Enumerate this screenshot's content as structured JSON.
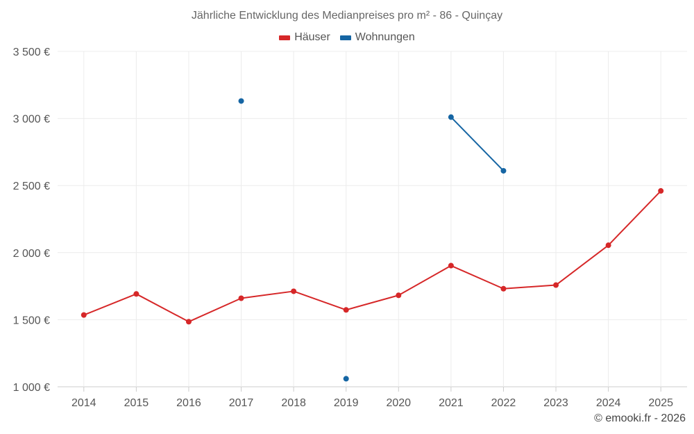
{
  "chart_data": {
    "type": "line",
    "title": "Jährliche Entwicklung des Medianpreises pro m² - 86 - Quinçay",
    "xlabel": "",
    "ylabel": "",
    "categories": [
      "2014",
      "2015",
      "2016",
      "2017",
      "2018",
      "2019",
      "2020",
      "2021",
      "2022",
      "2023",
      "2024",
      "2025"
    ],
    "ylim": [
      1000,
      3500
    ],
    "yticks": [
      1000,
      1500,
      2000,
      2500,
      3000,
      3500
    ],
    "ytick_labels": [
      "1 000 €",
      "1 500 €",
      "2 000 €",
      "2 500 €",
      "3 000 €",
      "3 500 €"
    ],
    "grid": true,
    "legend_position": "top-center",
    "series": [
      {
        "name": "Häuser",
        "color": "#d62728",
        "values": [
          1535,
          1692,
          1485,
          1660,
          1712,
          1573,
          1682,
          1903,
          1731,
          1758,
          2055,
          2460
        ]
      },
      {
        "name": "Wohnungen",
        "color": "#1565a3",
        "values": [
          null,
          null,
          null,
          3130,
          null,
          1060,
          null,
          3010,
          2610,
          null,
          null,
          null
        ]
      }
    ]
  },
  "watermark": "© emooki.fr - 2026"
}
